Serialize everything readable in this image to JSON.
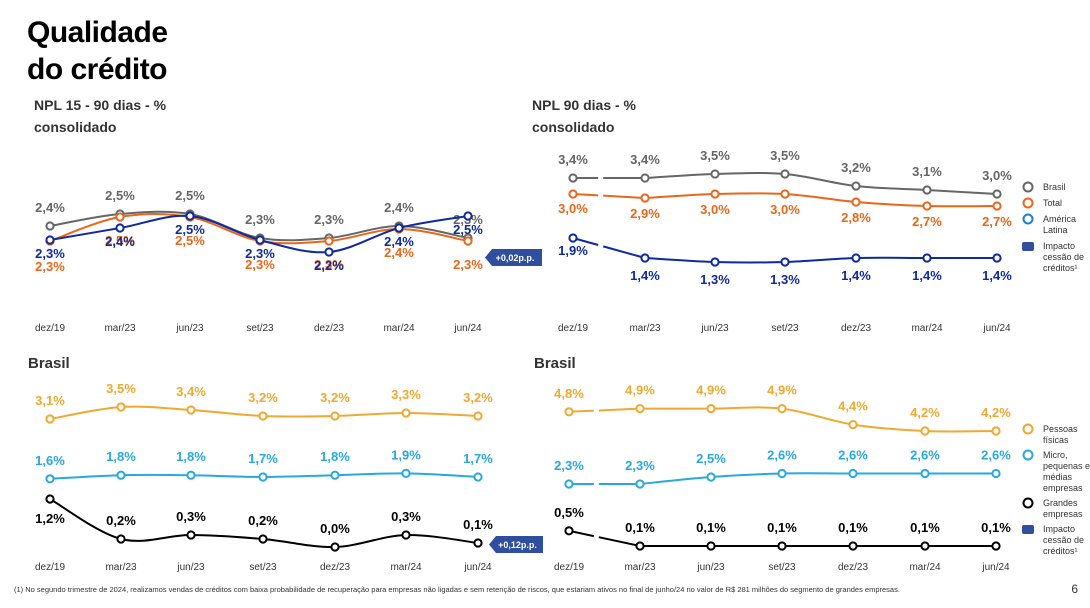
{
  "page": {
    "title_line1": "Qualidade",
    "title_line2": "do crédito",
    "footnote": "(1) No segundo trimestre de 2024, realizamos vendas de créditos com baixa probabilidade de recuperação para empresas não ligadas e sem retenção de riscos, que estariam ativos no final de junho/24 no valor de R$ 281 milhões do segmento de grandes empresas.",
    "page_number": "6"
  },
  "chart_data": [
    {
      "id": "npl15",
      "type": "line",
      "title_line1": "NPL 15 - 90 dias - %",
      "title_line2": "consolidado",
      "categories": [
        "dez/19",
        "mar/23",
        "jun/23",
        "set/23",
        "dez/23",
        "mar/24",
        "jun/24"
      ],
      "series": [
        {
          "name": "Brasil",
          "color": "#666666",
          "values": [
            2.4,
            2.5,
            2.5,
            2.3,
            2.3,
            2.4,
            2.3
          ],
          "labels": [
            "2,4%",
            "2,5%",
            "2,5%",
            "2,3%",
            "2,3%",
            "2,4%",
            "2,3%"
          ]
        },
        {
          "name": "Total",
          "color": "#e8671a",
          "values": [
            2.3,
            2.5,
            2.5,
            2.3,
            2.3,
            2.4,
            2.3
          ],
          "labels": [
            "2,3%",
            "2,5%",
            "2,5%",
            "2,3%",
            "2,3%",
            "2,4%",
            "2,3%"
          ]
        },
        {
          "name": "América Latina",
          "color": "#0e2a9e",
          "values": [
            2.3,
            2.4,
            2.5,
            2.3,
            2.2,
            2.4,
            2.5
          ],
          "labels": [
            "2,3%",
            "2,4%",
            "2,5%",
            "2,3%",
            "2,2%",
            "2,4%",
            "2,5%"
          ]
        }
      ],
      "annotation": "+0,02p.p."
    },
    {
      "id": "npl90",
      "type": "line",
      "title_line1": "NPL 90 dias - %",
      "title_line2": "consolidado",
      "categories": [
        "dez/19",
        "mar/23",
        "jun/23",
        "set/23",
        "dez/23",
        "mar/24",
        "jun/24"
      ],
      "series": [
        {
          "name": "Brasil",
          "color": "#666666",
          "values": [
            3.4,
            3.4,
            3.5,
            3.5,
            3.2,
            3.1,
            3.0
          ],
          "labels": [
            "3,4%",
            "3,4%",
            "3,5%",
            "3,5%",
            "3,2%",
            "3,1%",
            "3,0%"
          ]
        },
        {
          "name": "Total",
          "color": "#e8671a",
          "values": [
            3.0,
            2.9,
            3.0,
            3.0,
            2.8,
            2.7,
            2.7
          ],
          "labels": [
            "3,0%",
            "2,9%",
            "3,0%",
            "3,0%",
            "2,8%",
            "2,7%",
            "2,7%"
          ]
        },
        {
          "name": "América Latina",
          "color": "#0e2a9e",
          "values": [
            1.9,
            1.4,
            1.3,
            1.3,
            1.4,
            1.4,
            1.4
          ],
          "labels": [
            "1,9%",
            "1,4%",
            "1,3%",
            "1,3%",
            "1,4%",
            "1,4%",
            "1,4%"
          ]
        }
      ],
      "legend": [
        {
          "label": "Brasil",
          "color": "#666666",
          "kind": "circle"
        },
        {
          "label": "Total",
          "color": "#e8671a",
          "kind": "circle"
        },
        {
          "label": "América Latina",
          "color": "#1a7fd4",
          "kind": "circle"
        },
        {
          "label": "Impacto cessão de créditos¹",
          "color": "#2f4f9e",
          "kind": "box"
        }
      ]
    },
    {
      "id": "brasil15",
      "type": "line",
      "title": "Brasil",
      "categories": [
        "dez/19",
        "mar/23",
        "jun/23",
        "set/23",
        "dez/23",
        "mar/24",
        "jun/24"
      ],
      "series": [
        {
          "name": "Pessoas físicas",
          "color": "#f0a830",
          "values": [
            3.1,
            3.5,
            3.4,
            3.2,
            3.2,
            3.3,
            3.2
          ],
          "labels": [
            "3,1%",
            "3,5%",
            "3,4%",
            "3,2%",
            "3,2%",
            "3,3%",
            "3,2%"
          ]
        },
        {
          "name": "Micro, pequenas e médias empresas",
          "color": "#29a8e0",
          "values": [
            1.6,
            1.8,
            1.8,
            1.7,
            1.8,
            1.9,
            1.7
          ],
          "labels": [
            "1,6%",
            "1,8%",
            "1,8%",
            "1,7%",
            "1,8%",
            "1,9%",
            "1,7%"
          ]
        },
        {
          "name": "Grandes empresas",
          "color": "#000000",
          "values": [
            1.2,
            0.2,
            0.3,
            0.2,
            0.0,
            0.3,
            0.1
          ],
          "labels": [
            "1,2%",
            "0,2%",
            "0,3%",
            "0,2%",
            "0,0%",
            "0,3%",
            "0,1%"
          ]
        }
      ],
      "annotation": "+0,12p.p."
    },
    {
      "id": "brasil90",
      "type": "line",
      "title": "Brasil",
      "categories": [
        "dez/19",
        "mar/23",
        "jun/23",
        "set/23",
        "dez/23",
        "mar/24",
        "jun/24"
      ],
      "series": [
        {
          "name": "Pessoas físicas",
          "color": "#f0a830",
          "values": [
            4.8,
            4.9,
            4.9,
            4.9,
            4.4,
            4.2,
            4.2
          ],
          "labels": [
            "4,8%",
            "4,9%",
            "4,9%",
            "4,9%",
            "4,4%",
            "4,2%",
            "4,2%"
          ]
        },
        {
          "name": "Micro, pequenas e médias empresas",
          "color": "#29a8e0",
          "values": [
            2.3,
            2.3,
            2.5,
            2.6,
            2.6,
            2.6,
            2.6
          ],
          "labels": [
            "2,3%",
            "2,3%",
            "2,5%",
            "2,6%",
            "2,6%",
            "2,6%",
            "2,6%"
          ]
        },
        {
          "name": "Grandes empresas",
          "color": "#000000",
          "values": [
            0.5,
            0.1,
            0.1,
            0.1,
            0.1,
            0.1,
            0.1
          ],
          "labels": [
            "0,5%",
            "0,1%",
            "0,1%",
            "0,1%",
            "0,1%",
            "0,1%",
            "0,1%"
          ]
        }
      ],
      "legend": [
        {
          "label": "Pessoas físicas",
          "color": "#f0a830",
          "kind": "circle"
        },
        {
          "label": "Micro, pequenas e médias empresas",
          "color": "#29a8e0",
          "kind": "circle"
        },
        {
          "label": "Grandes empresas",
          "color": "#000000",
          "kind": "circle"
        },
        {
          "label": "Impacto cessão de créditos¹",
          "color": "#2f4f9e",
          "kind": "box"
        }
      ]
    }
  ]
}
